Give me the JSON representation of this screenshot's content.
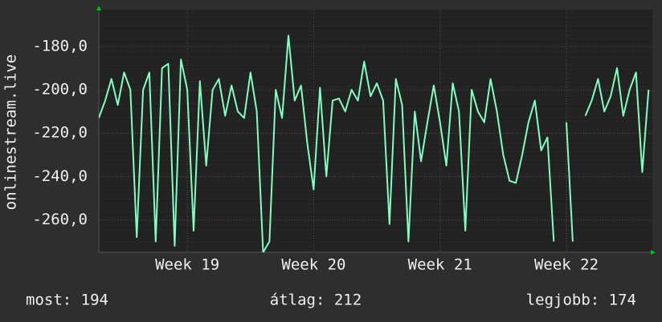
{
  "chart_data": {
    "type": "line",
    "y_label": "onlinestream.live",
    "x": [
      18.3,
      18.35,
      18.4,
      18.45,
      18.5,
      18.55,
      18.6,
      18.65,
      18.7,
      18.75,
      18.8,
      18.85,
      18.9,
      18.95,
      19.0,
      19.05,
      19.1,
      19.15,
      19.2,
      19.25,
      19.3,
      19.35,
      19.4,
      19.45,
      19.5,
      19.55,
      19.6,
      19.65,
      19.7,
      19.75,
      19.8,
      19.85,
      19.9,
      19.95,
      20.0,
      20.05,
      20.1,
      20.15,
      20.2,
      20.25,
      20.3,
      20.35,
      20.4,
      20.45,
      20.5,
      20.55,
      20.6,
      20.65,
      20.7,
      20.75,
      20.8,
      20.85,
      20.9,
      20.95,
      21.0,
      21.05,
      21.1,
      21.15,
      21.2,
      21.25,
      21.3,
      21.35,
      21.4,
      21.45,
      21.5,
      21.55,
      21.6,
      21.65,
      21.7,
      21.75,
      21.8,
      21.85,
      21.9,
      21.95,
      22.0,
      22.05,
      22.1,
      22.15,
      22.2,
      22.25,
      22.3,
      22.35,
      22.4,
      22.45,
      22.5,
      22.55,
      22.6,
      22.65
    ],
    "values": [
      -213,
      -205,
      -195,
      -207,
      -192,
      -200,
      -268,
      -200,
      -192,
      -270,
      -190,
      -188,
      -272,
      -186,
      -200,
      -265,
      -196,
      -235,
      -200,
      -195,
      -212,
      -198,
      -210,
      -213,
      -192,
      -210,
      -275,
      -270,
      -200,
      -213,
      -175,
      -205,
      -198,
      -225,
      -246,
      -199,
      -240,
      -205,
      -204,
      -210,
      -200,
      -205,
      -187,
      -203,
      -197,
      -205,
      -262,
      -195,
      -207,
      -270,
      -210,
      -233,
      -215,
      -198,
      -215,
      -235,
      -197,
      -210,
      -265,
      -200,
      -210,
      -215,
      -195,
      -210,
      -230,
      -242,
      -243,
      -230,
      -215,
      -205,
      -228,
      -222,
      -270,
      null,
      -215,
      -270,
      null,
      -212,
      -205,
      -195,
      -210,
      -203,
      -190,
      -212,
      -200,
      -192,
      -238,
      -200
    ],
    "color": "#80ffc0",
    "xlim": [
      18.3,
      22.68
    ],
    "xticks": [
      {
        "value": 19,
        "label": "Week 19"
      },
      {
        "value": 20,
        "label": "Week 20"
      },
      {
        "value": 21,
        "label": "Week 21"
      },
      {
        "value": 22,
        "label": "Week 22"
      }
    ],
    "ylim": [
      -275,
      -163
    ],
    "yticks": [
      {
        "value": -260,
        "label": "-260,0"
      },
      {
        "value": -240,
        "label": "-240,0"
      },
      {
        "value": -220,
        "label": "-220,0"
      },
      {
        "value": -200,
        "label": "-200,0"
      },
      {
        "value": -180,
        "label": "-180,0"
      }
    ],
    "grid": true,
    "footer": [
      "most: 194",
      "átlag: 212",
      "legjobb: 174"
    ]
  }
}
